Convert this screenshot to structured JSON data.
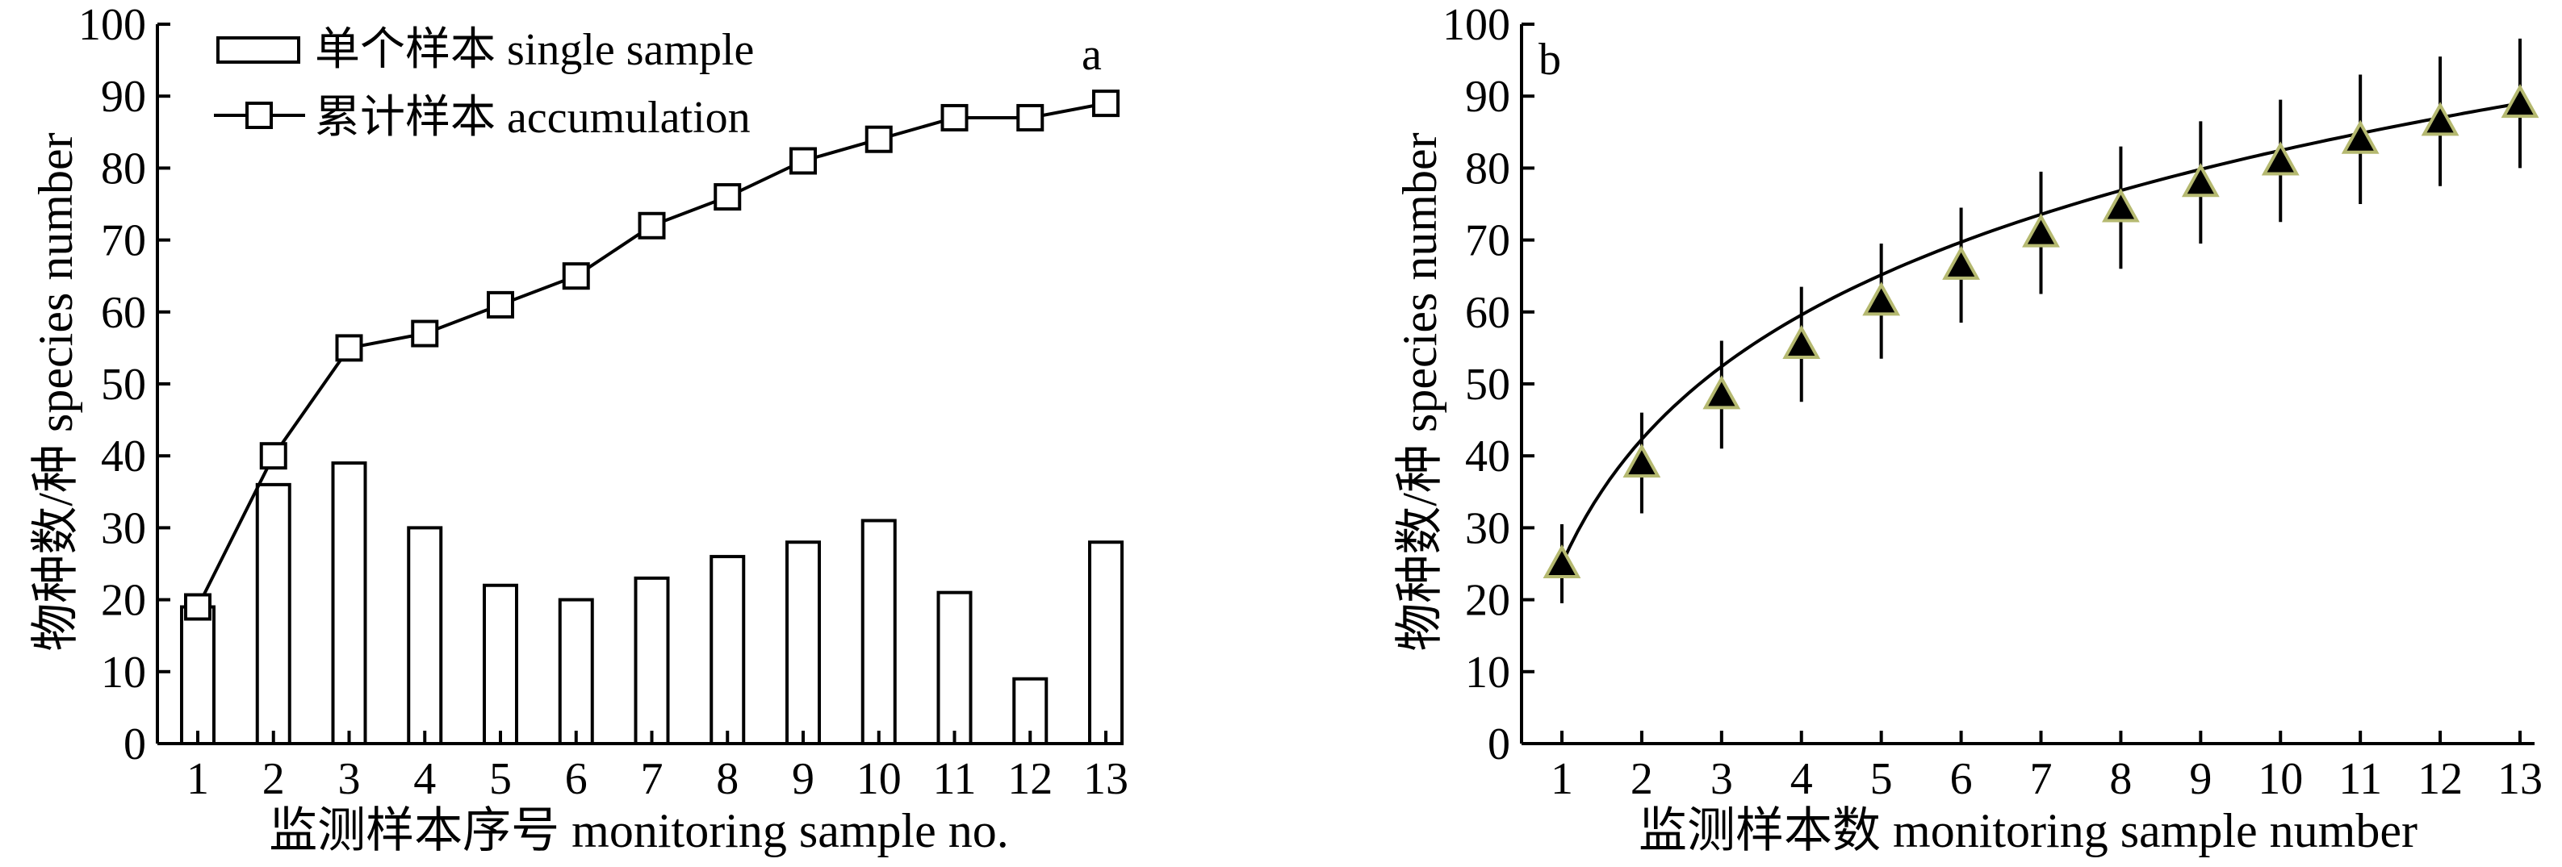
{
  "chart_data": [
    {
      "panel_label": "a",
      "type": "bar+line",
      "xlabel": "监测样本序号 monitoring sample no.",
      "ylabel": "物种数/种 species number",
      "categories": [
        "1",
        "2",
        "3",
        "4",
        "5",
        "6",
        "7",
        "8",
        "9",
        "10",
        "11",
        "12",
        "13"
      ],
      "y_ticks": [
        "0",
        "10",
        "20",
        "30",
        "40",
        "50",
        "60",
        "70",
        "80",
        "90",
        "100"
      ],
      "ylim": [
        0,
        100
      ],
      "legend_position": "top-left",
      "grid": false,
      "series": [
        {
          "name": "单个样本 single sample",
          "kind": "bar",
          "values": [
            19,
            36,
            39,
            30,
            22,
            20,
            23,
            26,
            28,
            31,
            21,
            9,
            28
          ]
        },
        {
          "name": "累计样本 accumulation",
          "kind": "line",
          "marker": "square",
          "values": [
            19,
            40,
            55,
            57,
            61,
            65,
            72,
            76,
            81,
            84,
            87,
            87,
            89
          ]
        }
      ]
    },
    {
      "panel_label": "b",
      "type": "scatter",
      "xlabel": "监测样本数 monitoring sample number",
      "ylabel": "物种数/种 species number",
      "categories": [
        "1",
        "2",
        "3",
        "4",
        "5",
        "6",
        "7",
        "8",
        "9",
        "10",
        "11",
        "12",
        "13"
      ],
      "y_ticks": [
        "0",
        "10",
        "20",
        "30",
        "40",
        "50",
        "60",
        "70",
        "80",
        "90",
        "100"
      ],
      "ylim": [
        0,
        100
      ],
      "grid": false,
      "marker": "triangle",
      "marker_fill": "#000000",
      "marker_edge": "#b5b970",
      "values": [
        25,
        39,
        48.5,
        55.5,
        61.5,
        66.5,
        71,
        74.5,
        78,
        81,
        84,
        86.5,
        89
      ],
      "error": [
        5.5,
        7,
        7.5,
        8,
        8,
        8,
        8.5,
        8.5,
        8.5,
        8.5,
        9,
        9,
        9
      ],
      "fit_curve": "smooth"
    }
  ]
}
